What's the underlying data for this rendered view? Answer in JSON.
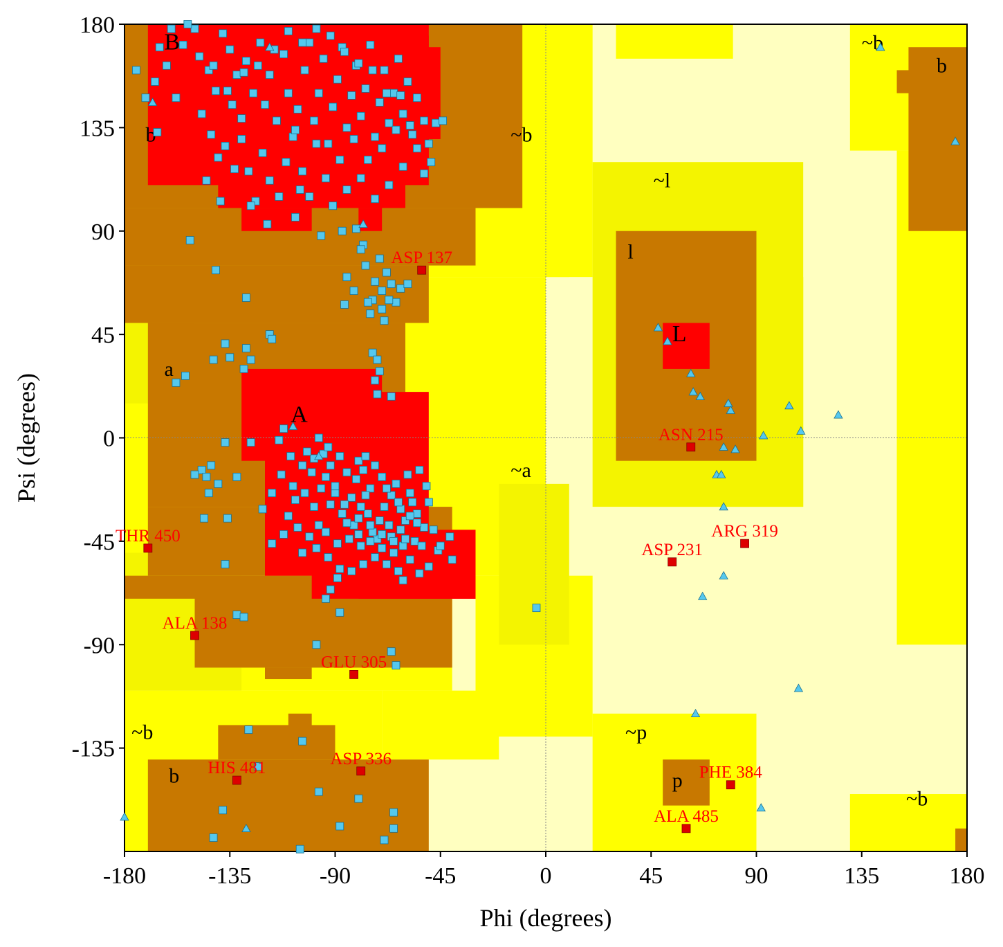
{
  "chart_data": {
    "type": "scatter",
    "title": "",
    "xlabel": "Phi (degrees)",
    "ylabel": "Psi (degrees)",
    "xlim": [
      -180,
      180
    ],
    "ylim": [
      -180,
      180
    ],
    "xticks": [
      "-180",
      "-135",
      "-90",
      "-45",
      "0",
      "45",
      "90",
      "135",
      "180"
    ],
    "yticks": [
      "180",
      "135",
      "90",
      "45",
      "0",
      "-45",
      "-90",
      "-135"
    ],
    "grid": false,
    "zero_lines": true,
    "colors": {
      "core": "#ff0000",
      "allowed": "#c87800",
      "generous": "#ffff00",
      "generous_light": "#f4f400",
      "disallowed": "#ffffc0",
      "residue_marker": "#55c8ee",
      "glycine_marker": "#55c8ee",
      "outlier_marker": "#dd0000",
      "outlier_label": "#ff0000"
    },
    "region_labels": [
      {
        "text": "B",
        "phi": -163,
        "psi": 169
      },
      {
        "text": "b",
        "phi": -171,
        "psi": 129
      },
      {
        "text": "~b",
        "phi": -15,
        "psi": 129
      },
      {
        "text": "~l",
        "phi": 46,
        "psi": 109
      },
      {
        "text": "l",
        "phi": 35,
        "psi": 78
      },
      {
        "text": "L",
        "phi": 54,
        "psi": 42
      },
      {
        "text": "a",
        "phi": -163,
        "psi": 27
      },
      {
        "text": "A",
        "phi": -109,
        "psi": 7
      },
      {
        "text": "~a",
        "phi": -15,
        "psi": -17
      },
      {
        "text": "~b",
        "phi": -177,
        "psi": -131
      },
      {
        "text": "b",
        "phi": -161,
        "psi": -150
      },
      {
        "text": "~p",
        "phi": 34,
        "psi": -131
      },
      {
        "text": "p",
        "phi": 54,
        "psi": -152
      },
      {
        "text": "~b",
        "phi": 154,
        "psi": -160
      },
      {
        "text": "~b",
        "phi": 135,
        "psi": 169
      },
      {
        "text": "b",
        "phi": 167,
        "psi": 159
      }
    ],
    "outliers": [
      {
        "label": "ASP 137",
        "phi": -53,
        "psi": 73
      },
      {
        "label": "THR 450",
        "phi": -170,
        "psi": -48
      },
      {
        "label": "ALA 138",
        "phi": -150,
        "psi": -86
      },
      {
        "label": "GLU 305",
        "phi": -82,
        "psi": -103
      },
      {
        "label": "HIS 481",
        "phi": -132,
        "psi": -149
      },
      {
        "label": "ASP 336",
        "phi": -79,
        "psi": -145
      },
      {
        "label": "ASN 215",
        "phi": 62,
        "psi": -4
      },
      {
        "label": "ASP 231",
        "phi": 54,
        "psi": -54
      },
      {
        "label": "ARG 319",
        "phi": 85,
        "psi": -46
      },
      {
        "label": "PHE 384",
        "phi": 79,
        "psi": -151
      },
      {
        "label": "ALA 485",
        "phi": 60,
        "psi": -170
      }
    ],
    "glycines": [
      [
        -168,
        146
      ],
      [
        -78,
        93
      ],
      [
        -118,
        170
      ],
      [
        -108,
        5
      ],
      [
        -97,
        -8
      ],
      [
        48,
        48
      ],
      [
        52,
        42
      ],
      [
        62,
        28
      ],
      [
        63,
        20
      ],
      [
        66,
        18
      ],
      [
        78,
        15
      ],
      [
        79,
        12
      ],
      [
        81,
        -5
      ],
      [
        76,
        -4
      ],
      [
        73,
        -16
      ],
      [
        75,
        -16
      ],
      [
        76,
        -30
      ],
      [
        93,
        1
      ],
      [
        104,
        14
      ],
      [
        109,
        3
      ],
      [
        125,
        10
      ],
      [
        76,
        -60
      ],
      [
        67,
        -69
      ],
      [
        108,
        -109
      ],
      [
        64,
        -120
      ],
      [
        92,
        -161
      ],
      [
        -128,
        -170
      ],
      [
        -180,
        -165
      ],
      [
        143,
        170
      ],
      [
        175,
        129
      ]
    ],
    "residues": [
      [
        -167,
        155
      ],
      [
        -162,
        162
      ],
      [
        -158,
        148
      ],
      [
        -155,
        171
      ],
      [
        -150,
        178
      ],
      [
        -148,
        166
      ],
      [
        -147,
        141
      ],
      [
        -144,
        160
      ],
      [
        -141,
        151
      ],
      [
        -138,
        176
      ],
      [
        -135,
        169
      ],
      [
        -134,
        145
      ],
      [
        -132,
        158
      ],
      [
        -130,
        139
      ],
      [
        -128,
        164
      ],
      [
        -125,
        150
      ],
      [
        -122,
        172
      ],
      [
        -120,
        145
      ],
      [
        -118,
        158
      ],
      [
        -115,
        138
      ],
      [
        -112,
        167
      ],
      [
        -110,
        150
      ],
      [
        -108,
        131
      ],
      [
        -106,
        143
      ],
      [
        -103,
        160
      ],
      [
        -101,
        172
      ],
      [
        -99,
        138
      ],
      [
        -97,
        150
      ],
      [
        -95,
        165
      ],
      [
        -93,
        128
      ],
      [
        -91,
        144
      ],
      [
        -89,
        156
      ],
      [
        -87,
        170
      ],
      [
        -85,
        135
      ],
      [
        -83,
        149
      ],
      [
        -81,
        162
      ],
      [
        -79,
        140
      ],
      [
        -77,
        152
      ],
      [
        -75,
        171
      ],
      [
        -73,
        131
      ],
      [
        -71,
        146
      ],
      [
        -69,
        160
      ],
      [
        -67,
        137
      ],
      [
        -65,
        150
      ],
      [
        -63,
        165
      ],
      [
        -61,
        141
      ],
      [
        -59,
        155
      ],
      [
        -57,
        132
      ],
      [
        -55,
        148
      ],
      [
        -52,
        138
      ],
      [
        -50,
        128
      ],
      [
        -47,
        137
      ],
      [
        -44,
        138
      ],
      [
        -143,
        132
      ],
      [
        -140,
        122
      ],
      [
        -137,
        127
      ],
      [
        -133,
        117
      ],
      [
        -130,
        130
      ],
      [
        -127,
        116
      ],
      [
        -124,
        103
      ],
      [
        -121,
        124
      ],
      [
        -118,
        112
      ],
      [
        -114,
        105
      ],
      [
        -111,
        120
      ],
      [
        -107,
        134
      ],
      [
        -104,
        116
      ],
      [
        -101,
        105
      ],
      [
        -98,
        128
      ],
      [
        -94,
        113
      ],
      [
        -91,
        101
      ],
      [
        -88,
        121
      ],
      [
        -85,
        108
      ],
      [
        -82,
        130
      ],
      [
        -79,
        113
      ],
      [
        -76,
        121
      ],
      [
        -73,
        104
      ],
      [
        -70,
        126
      ],
      [
        -67,
        110
      ],
      [
        -64,
        134
      ],
      [
        -61,
        118
      ],
      [
        -58,
        136
      ],
      [
        -55,
        126
      ],
      [
        -52,
        115
      ],
      [
        -49,
        120
      ],
      [
        -62,
        149
      ],
      [
        -68,
        150
      ],
      [
        -74,
        160
      ],
      [
        -80,
        163
      ],
      [
        -86,
        168
      ],
      [
        -92,
        175
      ],
      [
        -98,
        178
      ],
      [
        -104,
        172
      ],
      [
        -110,
        177
      ],
      [
        -116,
        169
      ],
      [
        -123,
        162
      ],
      [
        -129,
        159
      ],
      [
        -136,
        151
      ],
      [
        -142,
        162
      ],
      [
        -153,
        180
      ],
      [
        -160,
        178
      ],
      [
        -165,
        170
      ],
      [
        -175,
        160
      ],
      [
        -171,
        148
      ],
      [
        -166,
        133
      ],
      [
        -126,
        101
      ],
      [
        -119,
        93
      ],
      [
        -107,
        96
      ],
      [
        -96,
        88
      ],
      [
        -87,
        90
      ],
      [
        -81,
        91
      ],
      [
        -105,
        108
      ],
      [
        -139,
        103
      ],
      [
        -145,
        112
      ],
      [
        -78,
        84
      ],
      [
        -79,
        82
      ],
      [
        -77,
        75
      ],
      [
        -73,
        68
      ],
      [
        -70,
        64
      ],
      [
        -68,
        72
      ],
      [
        -66,
        67
      ],
      [
        -64,
        59
      ],
      [
        -62,
        65
      ],
      [
        -70,
        56
      ],
      [
        -74,
        60
      ],
      [
        -76,
        59
      ],
      [
        -82,
        64
      ],
      [
        -85,
        70
      ],
      [
        -69,
        51
      ],
      [
        -67,
        60
      ],
      [
        -71,
        78
      ],
      [
        -75,
        54
      ],
      [
        -59,
        67
      ],
      [
        -86,
        58
      ],
      [
        -152,
        86
      ],
      [
        -141,
        73
      ],
      [
        -128,
        61
      ],
      [
        -118,
        45
      ],
      [
        -117,
        43
      ],
      [
        -128,
        39
      ],
      [
        -137,
        41
      ],
      [
        -135,
        35
      ],
      [
        -142,
        34
      ],
      [
        -126,
        34
      ],
      [
        -129,
        30
      ],
      [
        -154,
        27
      ],
      [
        -158,
        24
      ],
      [
        -74,
        37
      ],
      [
        -72,
        34
      ],
      [
        -71,
        29
      ],
      [
        -73,
        25
      ],
      [
        -72,
        19
      ],
      [
        -66,
        18
      ],
      [
        -126,
        -2
      ],
      [
        -137,
        -2
      ],
      [
        -143,
        -12
      ],
      [
        -147,
        -14
      ],
      [
        -150,
        -16
      ],
      [
        -145,
        -17
      ],
      [
        -140,
        -20
      ],
      [
        -144,
        -24
      ],
      [
        -132,
        -17
      ],
      [
        -136,
        -35
      ],
      [
        -146,
        -35
      ],
      [
        -137,
        -55
      ],
      [
        -132,
        -77
      ],
      [
        -129,
        -78
      ],
      [
        -99,
        -9
      ],
      [
        -102,
        -6
      ],
      [
        -112,
        4
      ],
      [
        -114,
        -1
      ],
      [
        -88,
        -8
      ],
      [
        -92,
        -12
      ],
      [
        -85,
        -15
      ],
      [
        -81,
        -18
      ],
      [
        -96,
        -22
      ],
      [
        -90,
        -24
      ],
      [
        -83,
        -26
      ],
      [
        -78,
        -14
      ],
      [
        -75,
        -22
      ],
      [
        -70,
        -17
      ],
      [
        -66,
        -25
      ],
      [
        -62,
        -31
      ],
      [
        -58,
        -24
      ],
      [
        -55,
        -33
      ],
      [
        -52,
        -39
      ],
      [
        -50,
        -28
      ],
      [
        -56,
        -45
      ],
      [
        -61,
        -47
      ],
      [
        -66,
        -43
      ],
      [
        -71,
        -36
      ],
      [
        -76,
        -33
      ],
      [
        -82,
        -38
      ],
      [
        -87,
        -33
      ],
      [
        -92,
        -29
      ],
      [
        -97,
        -38
      ],
      [
        -101,
        -43
      ],
      [
        -106,
        -39
      ],
      [
        -110,
        -34
      ],
      [
        -104,
        -50
      ],
      [
        -98,
        -48
      ],
      [
        -93,
        -52
      ],
      [
        -88,
        -57
      ],
      [
        -83,
        -58
      ],
      [
        -78,
        -55
      ],
      [
        -73,
        -52
      ],
      [
        -68,
        -55
      ],
      [
        -63,
        -58
      ],
      [
        -58,
        -53
      ],
      [
        -54,
        -59
      ],
      [
        -50,
        -56
      ],
      [
        -46,
        -49
      ],
      [
        -41,
        -43
      ],
      [
        -40,
        -53
      ],
      [
        -61,
        -62
      ],
      [
        -79,
        -47
      ],
      [
        -84,
        -44
      ],
      [
        -89,
        -46
      ],
      [
        -94,
        -41
      ],
      [
        -99,
        -30
      ],
      [
        -103,
        -24
      ],
      [
        -108,
        -21
      ],
      [
        -113,
        -16
      ],
      [
        -117,
        -24
      ],
      [
        -121,
        -31
      ],
      [
        -117,
        -46
      ],
      [
        -112,
        -42
      ],
      [
        -107,
        -27
      ],
      [
        -72,
        -44
      ],
      [
        -67,
        -38
      ],
      [
        -62,
        -40
      ],
      [
        -74,
        -41
      ],
      [
        -69,
        -30
      ],
      [
        -64,
        -20
      ],
      [
        -59,
        -16
      ],
      [
        -54,
        -14
      ],
      [
        -51,
        -21
      ],
      [
        -48,
        -40
      ],
      [
        -45,
        -47
      ],
      [
        -60,
        -36
      ],
      [
        -57,
        -28
      ],
      [
        -53,
        -47
      ],
      [
        -65,
        -50
      ],
      [
        -70,
        -48
      ],
      [
        -75,
        -45
      ],
      [
        -80,
        -42
      ],
      [
        -85,
        -37
      ],
      [
        -89,
        -61
      ],
      [
        -92,
        -66
      ],
      [
        -94,
        -70
      ],
      [
        -66,
        -93
      ],
      [
        -88,
        -76
      ],
      [
        -64,
        -99
      ],
      [
        -4,
        -74
      ],
      [
        -95,
        -7
      ],
      [
        -93,
        -4
      ],
      [
        -97,
        0
      ],
      [
        -80,
        -10
      ],
      [
        -77,
        -8
      ],
      [
        -73,
        -12
      ],
      [
        -79,
        -30
      ],
      [
        -77,
        -25
      ],
      [
        -68,
        -22
      ],
      [
        -63,
        -28
      ],
      [
        -58,
        -34
      ],
      [
        -55,
        -37
      ],
      [
        -60,
        -44
      ],
      [
        -65,
        -45
      ],
      [
        -70,
        -42
      ],
      [
        -75,
        -38
      ],
      [
        -80,
        -35
      ],
      [
        -86,
        -29
      ],
      [
        -90,
        -21
      ],
      [
        -94,
        -17
      ],
      [
        -100,
        -15
      ],
      [
        -104,
        -12
      ],
      [
        -109,
        -8
      ],
      [
        -123,
        -143
      ],
      [
        -127,
        -127
      ],
      [
        -104,
        -132
      ],
      [
        -97,
        -154
      ],
      [
        -80,
        -157
      ],
      [
        -65,
        -163
      ],
      [
        -65,
        -170
      ],
      [
        -69,
        -175
      ],
      [
        -88,
        -169
      ],
      [
        -105,
        -179
      ],
      [
        -138,
        -162
      ],
      [
        -142,
        -174
      ],
      [
        -98,
        -90
      ]
    ]
  }
}
